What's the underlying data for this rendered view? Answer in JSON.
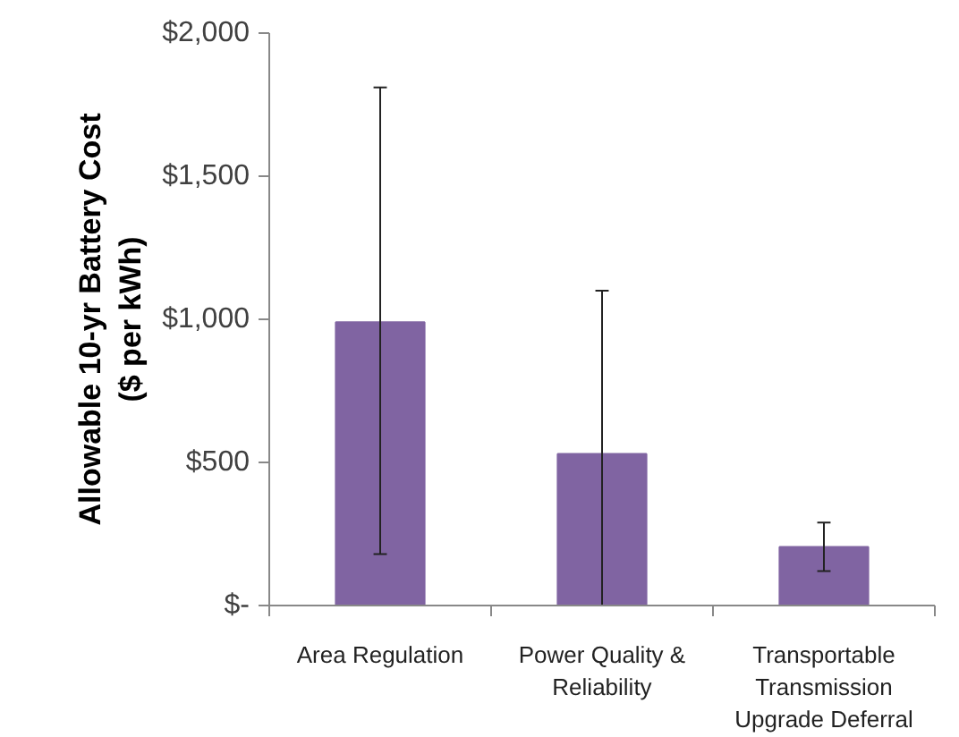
{
  "chart_data": {
    "type": "bar",
    "ylabel": "Allowable 10-yr Battery Cost\n($ per kWh)",
    "categories": [
      "Area Regulation",
      "Power Quality &\nReliability",
      "Transportable\nTransmission\nUpgrade Deferral"
    ],
    "series": [
      {
        "color": "#8064a2",
        "values": [
          990,
          530,
          205
        ],
        "errors": [
          [
            180,
            1810
          ],
          [
            0,
            1100
          ],
          [
            120,
            290
          ]
        ]
      }
    ],
    "ylim": [
      0,
      2000
    ],
    "yticks": [
      {
        "value": 0,
        "label": "$-"
      },
      {
        "value": 500,
        "label": "$500"
      },
      {
        "value": 1000,
        "label": "$1,000"
      },
      {
        "value": 1500,
        "label": "$1,500"
      },
      {
        "value": 2000,
        "label": "$2,000"
      }
    ]
  }
}
